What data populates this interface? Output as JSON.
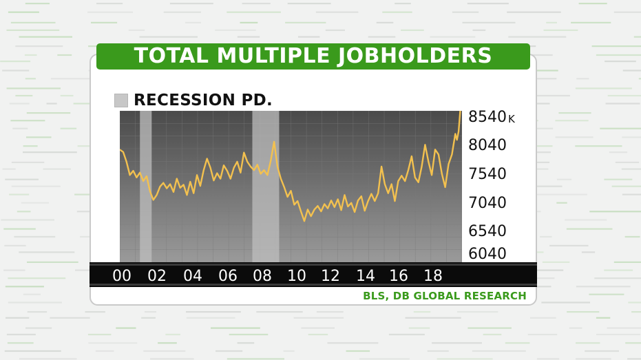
{
  "colors": {
    "title_bg": "#3a9a1c",
    "plot_bg_top": "#4a4a4a",
    "plot_bg_bottom": "#9a9a9a",
    "recession_band": "#bdbdbd",
    "line": "#f3c14f",
    "axis_band": "#0b0b0b",
    "source_text": "#3a9a1c"
  },
  "chart_data": {
    "type": "line",
    "title": "TOTAL MULTIPLE JOBHOLDERS",
    "legend": {
      "label": "RECESSION PD.",
      "placement": "top-left"
    },
    "source": "BLS, DB GLOBAL RESEARCH",
    "y_unit": "K",
    "y_ticks": [
      "8540",
      "8040",
      "7540",
      "7040",
      "6540",
      "6040"
    ],
    "ylim": [
      6040,
      8540
    ],
    "x_ticks": [
      "00",
      "02",
      "04",
      "06",
      "08",
      "10",
      "12",
      "14",
      "16",
      "18"
    ],
    "xlim": [
      2000,
      2020.4
    ],
    "recessions": [
      [
        2001.2,
        2001.9
      ],
      [
        2007.9,
        2009.5
      ]
    ],
    "series": [
      {
        "values": [
          [
            2000.0,
            7900
          ],
          [
            2000.2,
            7860
          ],
          [
            2000.4,
            7700
          ],
          [
            2000.6,
            7480
          ],
          [
            2000.8,
            7550
          ],
          [
            2001.0,
            7440
          ],
          [
            2001.2,
            7520
          ],
          [
            2001.4,
            7380
          ],
          [
            2001.6,
            7460
          ],
          [
            2001.8,
            7210
          ],
          [
            2002.0,
            7070
          ],
          [
            2002.2,
            7150
          ],
          [
            2002.4,
            7290
          ],
          [
            2002.6,
            7350
          ],
          [
            2002.8,
            7260
          ],
          [
            2003.0,
            7330
          ],
          [
            2003.2,
            7200
          ],
          [
            2003.4,
            7420
          ],
          [
            2003.6,
            7270
          ],
          [
            2003.8,
            7320
          ],
          [
            2004.0,
            7150
          ],
          [
            2004.2,
            7370
          ],
          [
            2004.4,
            7180
          ],
          [
            2004.6,
            7480
          ],
          [
            2004.8,
            7300
          ],
          [
            2005.0,
            7560
          ],
          [
            2005.2,
            7750
          ],
          [
            2005.4,
            7600
          ],
          [
            2005.6,
            7390
          ],
          [
            2005.8,
            7510
          ],
          [
            2006.0,
            7420
          ],
          [
            2006.2,
            7640
          ],
          [
            2006.4,
            7550
          ],
          [
            2006.6,
            7420
          ],
          [
            2006.8,
            7600
          ],
          [
            2007.0,
            7700
          ],
          [
            2007.2,
            7520
          ],
          [
            2007.4,
            7850
          ],
          [
            2007.6,
            7700
          ],
          [
            2007.8,
            7620
          ],
          [
            2008.0,
            7560
          ],
          [
            2008.2,
            7650
          ],
          [
            2008.4,
            7500
          ],
          [
            2008.6,
            7560
          ],
          [
            2008.8,
            7480
          ],
          [
            2009.0,
            7720
          ],
          [
            2009.2,
            8030
          ],
          [
            2009.4,
            7620
          ],
          [
            2009.6,
            7420
          ],
          [
            2009.8,
            7280
          ],
          [
            2010.0,
            7120
          ],
          [
            2010.2,
            7220
          ],
          [
            2010.4,
            6990
          ],
          [
            2010.6,
            7050
          ],
          [
            2010.8,
            6880
          ],
          [
            2011.0,
            6720
          ],
          [
            2011.2,
            6910
          ],
          [
            2011.4,
            6800
          ],
          [
            2011.6,
            6910
          ],
          [
            2011.8,
            6970
          ],
          [
            2012.0,
            6880
          ],
          [
            2012.2,
            7000
          ],
          [
            2012.4,
            6930
          ],
          [
            2012.6,
            7060
          ],
          [
            2012.8,
            6950
          ],
          [
            2013.0,
            7080
          ],
          [
            2013.2,
            6900
          ],
          [
            2013.4,
            7150
          ],
          [
            2013.6,
            6960
          ],
          [
            2013.8,
            7020
          ],
          [
            2014.0,
            6870
          ],
          [
            2014.2,
            7060
          ],
          [
            2014.4,
            7130
          ],
          [
            2014.6,
            6890
          ],
          [
            2014.8,
            7050
          ],
          [
            2015.0,
            7170
          ],
          [
            2015.2,
            7050
          ],
          [
            2015.4,
            7180
          ],
          [
            2015.6,
            7620
          ],
          [
            2015.8,
            7330
          ],
          [
            2016.0,
            7180
          ],
          [
            2016.2,
            7330
          ],
          [
            2016.4,
            7050
          ],
          [
            2016.6,
            7380
          ],
          [
            2016.8,
            7470
          ],
          [
            2017.0,
            7380
          ],
          [
            2017.2,
            7560
          ],
          [
            2017.4,
            7790
          ],
          [
            2017.6,
            7440
          ],
          [
            2017.8,
            7360
          ],
          [
            2018.0,
            7620
          ],
          [
            2018.2,
            7980
          ],
          [
            2018.4,
            7700
          ],
          [
            2018.6,
            7480
          ],
          [
            2018.8,
            7900
          ],
          [
            2019.0,
            7820
          ],
          [
            2019.2,
            7500
          ],
          [
            2019.4,
            7280
          ],
          [
            2019.6,
            7660
          ],
          [
            2019.8,
            7820
          ],
          [
            2020.0,
            8160
          ],
          [
            2020.1,
            8060
          ],
          [
            2020.2,
            8200
          ],
          [
            2020.3,
            8560
          ]
        ]
      }
    ]
  }
}
